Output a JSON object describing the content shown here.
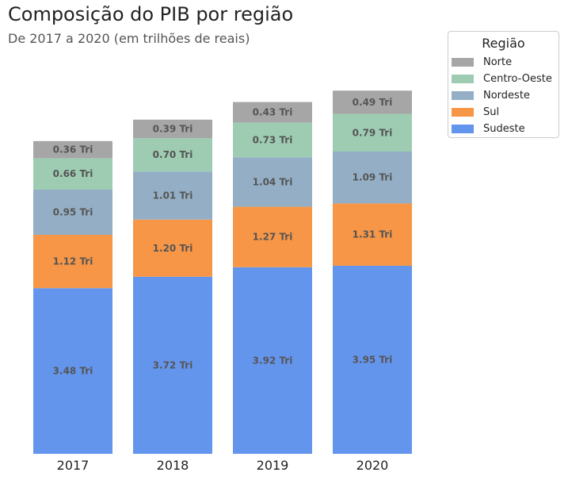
{
  "chart_data": {
    "type": "bar",
    "stacked": true,
    "title": "Composição do PIB por região",
    "subtitle": "De 2017 a 2020 (em trilhões de reais)",
    "xlabel": "",
    "ylabel": "",
    "categories": [
      "2017",
      "2018",
      "2019",
      "2020"
    ],
    "ylim": [
      0,
      7.5
    ],
    "grid": false,
    "legend_title": "Região",
    "legend_position": "top-right",
    "series": [
      {
        "name": "Sudeste",
        "color": "#6495ED",
        "values": [
          3.48,
          3.72,
          3.92,
          3.95
        ],
        "labels": [
          "3.48 Tri",
          "3.72 Tri",
          "3.92 Tri",
          "3.95 Tri"
        ]
      },
      {
        "name": "Sul",
        "color": "#F79646",
        "values": [
          1.12,
          1.2,
          1.27,
          1.31
        ],
        "labels": [
          "1.12 Tri",
          "1.20 Tri",
          "1.27 Tri",
          "1.31 Tri"
        ]
      },
      {
        "name": "Nordeste",
        "color": "#94AFC5",
        "values": [
          0.95,
          1.01,
          1.04,
          1.09
        ],
        "labels": [
          "0.95 Tri",
          "1.01 Tri",
          "1.04 Tri",
          "1.09 Tri"
        ]
      },
      {
        "name": "Centro-Oeste",
        "color": "#9ECCB2",
        "values": [
          0.66,
          0.7,
          0.73,
          0.79
        ],
        "labels": [
          "0.66 Tri",
          "0.70 Tri",
          "0.73 Tri",
          "0.79 Tri"
        ]
      },
      {
        "name": "Norte",
        "color": "#A6A6A6",
        "values": [
          0.36,
          0.39,
          0.43,
          0.49
        ],
        "labels": [
          "0.36 Tri",
          "0.39 Tri",
          "0.43 Tri",
          "0.49 Tri"
        ]
      }
    ],
    "legend_order": [
      "Norte",
      "Centro-Oeste",
      "Nordeste",
      "Sul",
      "Sudeste"
    ]
  }
}
